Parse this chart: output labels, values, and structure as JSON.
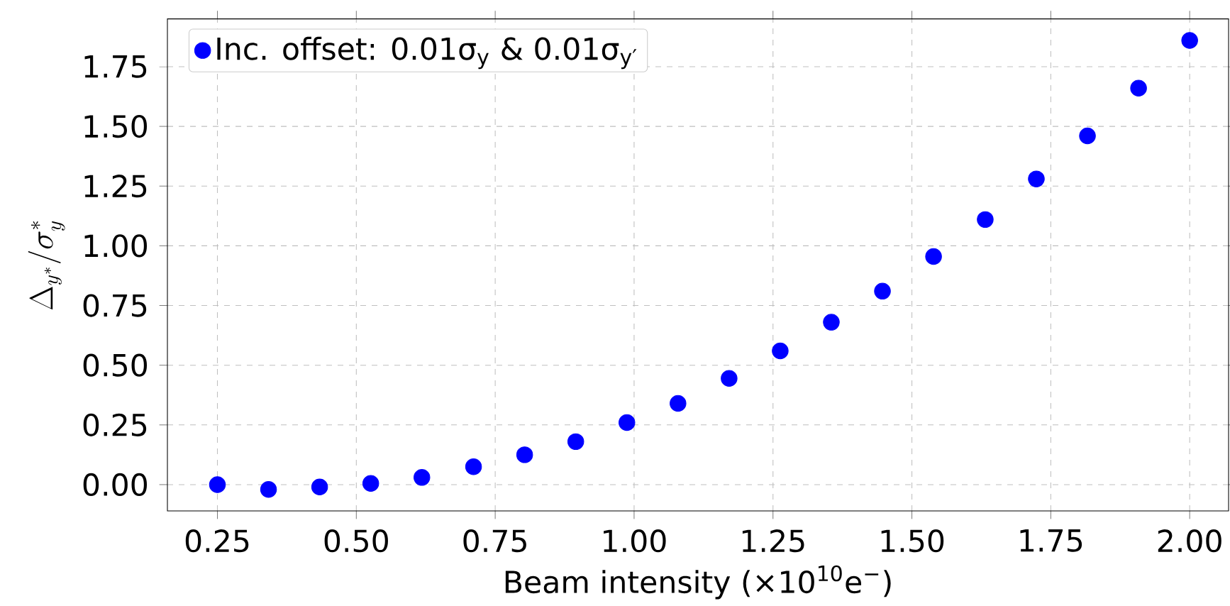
{
  "chart_data": {
    "type": "scatter",
    "xlabel": "Beam intensity (×10$^{10}$e$^{−}$)",
    "ylabel": "\\Delta_{y^*}/\\sigma^*_y",
    "x": [
      0.25,
      0.342,
      0.434,
      0.526,
      0.618,
      0.711,
      0.803,
      0.895,
      0.987,
      1.079,
      1.171,
      1.263,
      1.355,
      1.447,
      1.539,
      1.632,
      1.724,
      1.816,
      1.908,
      2.0
    ],
    "series": [
      {
        "name": "Inc. offset: 0.01σ$_{y}$ & 0.01σ$_{y′}$",
        "color": "#0000ff",
        "values": [
          0.0,
          -0.02,
          -0.01,
          0.005,
          0.03,
          0.075,
          0.125,
          0.18,
          0.26,
          0.34,
          0.445,
          0.56,
          0.68,
          0.81,
          0.955,
          1.11,
          1.28,
          1.46,
          1.66,
          1.86
        ]
      }
    ],
    "xlim": [
      0.16,
      2.07
    ],
    "ylim": [
      -0.11,
      1.95
    ],
    "xticks": [
      0.25,
      {
        "value": 0.5,
        "label": "0.50"
      },
      0.75,
      {
        "value": 1.0,
        "label": "1.00"
      },
      1.25,
      {
        "value": 1.5,
        "label": "1.50"
      },
      1.75,
      {
        "value": 2.0,
        "label": "2.00"
      }
    ],
    "yticks": [
      {
        "value": 0.0,
        "label": "0.00"
      },
      0.25,
      {
        "value": 0.5,
        "label": "0.50"
      },
      0.75,
      {
        "value": 1.0,
        "label": "1.00"
      },
      1.25,
      {
        "value": 1.5,
        "label": "1.50"
      },
      1.75
    ],
    "grid": true,
    "legend": "top left",
    "marker": "circle"
  }
}
